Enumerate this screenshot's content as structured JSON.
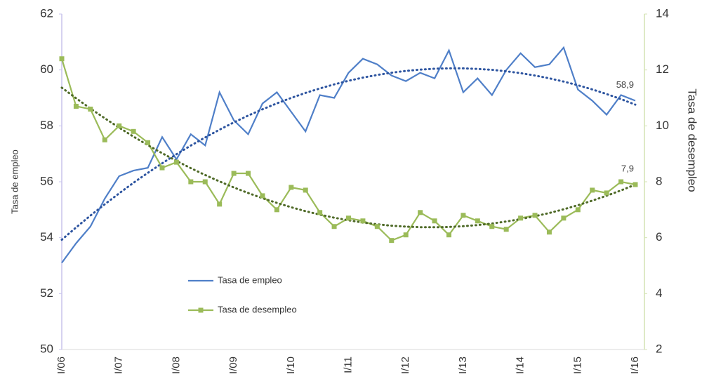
{
  "chart_data": {
    "type": "line",
    "categories": [
      "I/06",
      null,
      null,
      null,
      "I/07",
      null,
      null,
      null,
      "I/08",
      null,
      null,
      null,
      "I/09",
      null,
      null,
      null,
      "I/10",
      null,
      null,
      null,
      "I/11",
      null,
      null,
      null,
      "I/12",
      null,
      null,
      null,
      "I/13",
      null,
      null,
      null,
      "I/14",
      null,
      null,
      null,
      "I/15",
      null,
      null,
      null,
      "I/16"
    ],
    "y_label": "Tasa de empleo",
    "y2_label": "Tasa de desempleo",
    "ylim": [
      50,
      62
    ],
    "yticks": [
      50,
      52,
      54,
      56,
      58,
      60,
      62
    ],
    "y2lim": [
      2,
      14
    ],
    "y2ticks": [
      2,
      4,
      6,
      8,
      10,
      12,
      14
    ],
    "legend": "lower left",
    "trendline": {
      "type": "polynomial",
      "order": 2
    },
    "series": [
      {
        "name": "Tasa de empleo",
        "color": "#4f7fc8",
        "trend_color": "#2e55a0",
        "marker": "none",
        "values": [
          53.1,
          53.8,
          54.4,
          55.4,
          56.2,
          56.4,
          56.5,
          57.6,
          56.8,
          57.7,
          57.3,
          59.2,
          58.2,
          57.7,
          58.8,
          59.2,
          58.5,
          57.8,
          59.1,
          59.0,
          59.9,
          60.4,
          60.2,
          59.8,
          59.6,
          59.9,
          59.7,
          60.7,
          59.2,
          59.7,
          59.1,
          60.0,
          60.6,
          60.1,
          60.2,
          60.8,
          59.3,
          58.9,
          58.4,
          59.1,
          58.9
        ],
        "value_labels": [
          null,
          null,
          null,
          null,
          null,
          null,
          null,
          null,
          null,
          null,
          null,
          null,
          null,
          null,
          null,
          null,
          null,
          null,
          null,
          null,
          null,
          null,
          null,
          null,
          null,
          null,
          null,
          null,
          null,
          null,
          null,
          null,
          null,
          null,
          null,
          null,
          null,
          null,
          null,
          null,
          "58,9"
        ]
      },
      {
        "name": "Tasa de desempleo",
        "color": "#9bbb59",
        "trend_color": "#4f6a28",
        "marker": "square",
        "axis": "y2",
        "values": [
          12.4,
          10.7,
          10.6,
          9.5,
          10.0,
          9.8,
          9.4,
          8.5,
          8.7,
          8.0,
          8.0,
          7.2,
          8.3,
          8.3,
          7.5,
          7.0,
          7.8,
          7.7,
          6.9,
          6.4,
          6.7,
          6.6,
          6.4,
          5.9,
          6.1,
          6.9,
          6.6,
          6.1,
          6.8,
          6.6,
          6.4,
          6.3,
          6.7,
          6.8,
          6.2,
          6.7,
          7.0,
          7.7,
          7.6,
          8.0,
          7.9
        ],
        "value_labels": [
          null,
          null,
          null,
          null,
          null,
          null,
          null,
          null,
          null,
          null,
          null,
          null,
          null,
          null,
          null,
          null,
          null,
          null,
          null,
          null,
          null,
          null,
          null,
          null,
          null,
          null,
          null,
          null,
          null,
          null,
          null,
          null,
          null,
          null,
          null,
          null,
          null,
          null,
          null,
          null,
          "7,9"
        ]
      }
    ]
  }
}
